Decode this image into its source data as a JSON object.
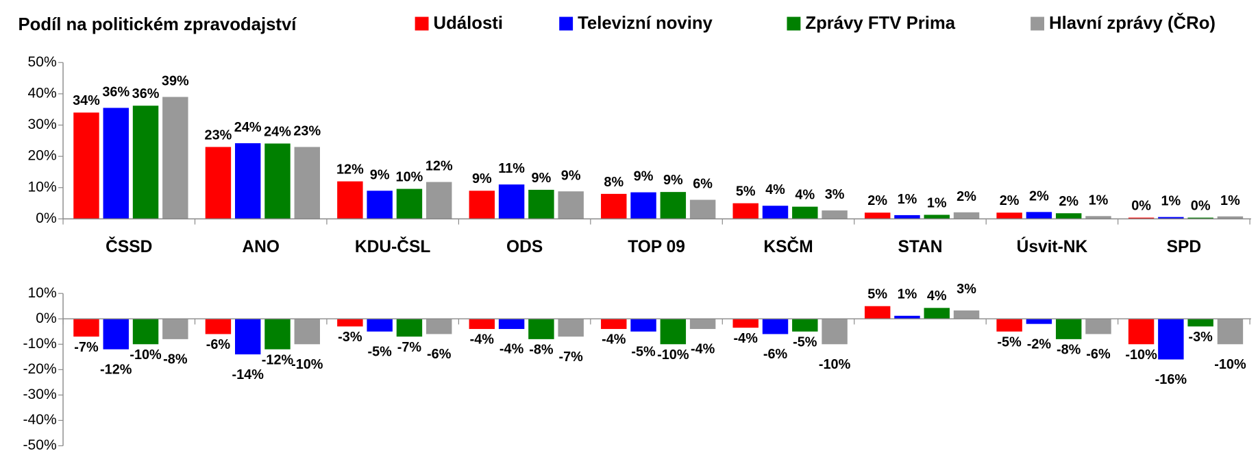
{
  "chart_data": [
    {
      "type": "bar",
      "title": "Podíl na politickém zpravodajství",
      "categories": [
        "ČSSD",
        "ANO",
        "KDU-ČSL",
        "ODS",
        "TOP 09",
        "KSČM",
        "STAN",
        "Úsvit-NK",
        "SPD"
      ],
      "series": [
        {
          "name": "Události",
          "color": "#ff0000",
          "values": [
            34,
            23,
            12,
            9,
            8,
            5,
            2,
            2,
            0.4
          ],
          "value_labels": [
            "34%",
            "23%",
            "12%",
            "9%",
            "8%",
            "5%",
            "2%",
            "2%",
            "0%"
          ]
        },
        {
          "name": "Televizní noviny",
          "color": "#0000ff",
          "values": [
            35.5,
            24.2,
            9,
            11,
            8.5,
            4.2,
            1.2,
            2.2,
            0.6
          ],
          "value_labels": [
            "36%",
            "24%",
            "9%",
            "11%",
            "9%",
            "4%",
            "1%",
            "2%",
            "1%"
          ]
        },
        {
          "name": "Zprávy FTV Prima",
          "color": "#008000",
          "values": [
            36.2,
            24.1,
            9.6,
            9.3,
            8.6,
            3.9,
            1.3,
            1.8,
            0.4
          ],
          "value_labels": [
            "36%",
            "24%",
            "10%",
            "9%",
            "9%",
            "4%",
            "1%",
            "2%",
            "0%"
          ]
        },
        {
          "name": "Hlavní zprávy (ČRo)",
          "color": "#999999",
          "values": [
            39,
            23,
            11.8,
            8.8,
            6.1,
            2.7,
            2.1,
            0.9,
            0.8
          ],
          "value_labels": [
            "39%",
            "23%",
            "12%",
            "9%",
            "6%",
            "3%",
            "2%",
            "1%",
            "1%"
          ]
        }
      ],
      "ylim": [
        0,
        50
      ],
      "yticks": [
        {
          "value": 0,
          "label": "0%"
        },
        {
          "value": 10,
          "label": "10%"
        },
        {
          "value": 20,
          "label": "20%"
        },
        {
          "value": 30,
          "label": "30%"
        },
        {
          "value": 40,
          "label": "40%"
        },
        {
          "value": 50,
          "label": "50%"
        }
      ]
    },
    {
      "type": "bar",
      "series": [
        {
          "color": "#ff0000",
          "values": [
            -7,
            -6,
            -3,
            -4,
            -4,
            -3.5,
            5,
            -5,
            -10
          ],
          "value_labels": [
            "-7%",
            "-6%",
            "-3%",
            "-4%",
            "-4%",
            "-4%",
            "5%",
            "-5%",
            "-10%"
          ]
        },
        {
          "color": "#0000ff",
          "values": [
            -12,
            -14,
            -5,
            -4,
            -5,
            -6,
            1.2,
            -2,
            -16
          ],
          "value_labels": [
            "-12%",
            "-14%",
            "-5%",
            "-4%",
            "-5%",
            "-6%",
            "1%",
            "-2%",
            "-16%"
          ]
        },
        {
          "color": "#008000",
          "values": [
            -10,
            -12,
            -7,
            -8,
            -10,
            -5,
            4.3,
            -8,
            -3
          ],
          "value_labels": [
            "-10%",
            "-12%",
            "-7%",
            "-8%",
            "-10%",
            "-5%",
            "4%",
            "-8%",
            "-3%"
          ]
        },
        {
          "color": "#999999",
          "values": [
            -8,
            -10,
            -6,
            -7,
            -4,
            -10,
            3.3,
            -6,
            -10
          ],
          "value_labels": [
            "-8%",
            "-10%",
            "-6%",
            "-7%",
            "-4%",
            "-10%",
            "3%",
            "-6%",
            "-10%"
          ]
        }
      ],
      "ylim": [
        -50,
        10
      ],
      "yticks": [
        {
          "value": -50,
          "label": "-50%"
        },
        {
          "value": -40,
          "label": "-40%"
        },
        {
          "value": -30,
          "label": "-30%"
        },
        {
          "value": -20,
          "label": "-20%"
        },
        {
          "value": -10,
          "label": "-10%"
        },
        {
          "value": 0,
          "label": "0%"
        },
        {
          "value": 10,
          "label": "10%"
        }
      ]
    }
  ]
}
